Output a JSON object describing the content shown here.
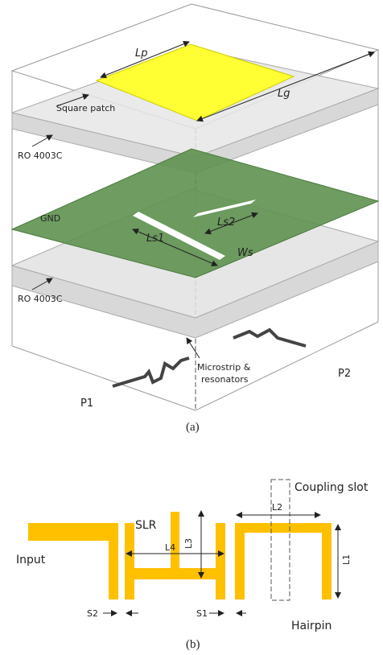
{
  "figure_a": {
    "patch_length": "Lp",
    "ground_length": "Lg",
    "patch_label": "Square patch",
    "substrate_top": "RO 4003C",
    "ground_label": "GND",
    "slot1_length": "Ls1",
    "slot2_length": "Ls2",
    "slot_width": "Ws",
    "substrate_bottom": "RO 4003C",
    "microstrip_label": [
      "Microstrip &",
      "resonators"
    ],
    "port1": "P1",
    "port2": "P2",
    "caption": "(a)"
  },
  "figure_b": {
    "slot_label": "Coupling slot",
    "slr_label": "SLR",
    "dim_L2": "L2",
    "dim_L3": "L3",
    "dim_L1": "L1",
    "dim_L4": "L4",
    "input_label": "Input",
    "dim_S2": "S2",
    "dim_S1": "S1",
    "hairpin_label": "Hairpin",
    "caption": "(b)"
  }
}
